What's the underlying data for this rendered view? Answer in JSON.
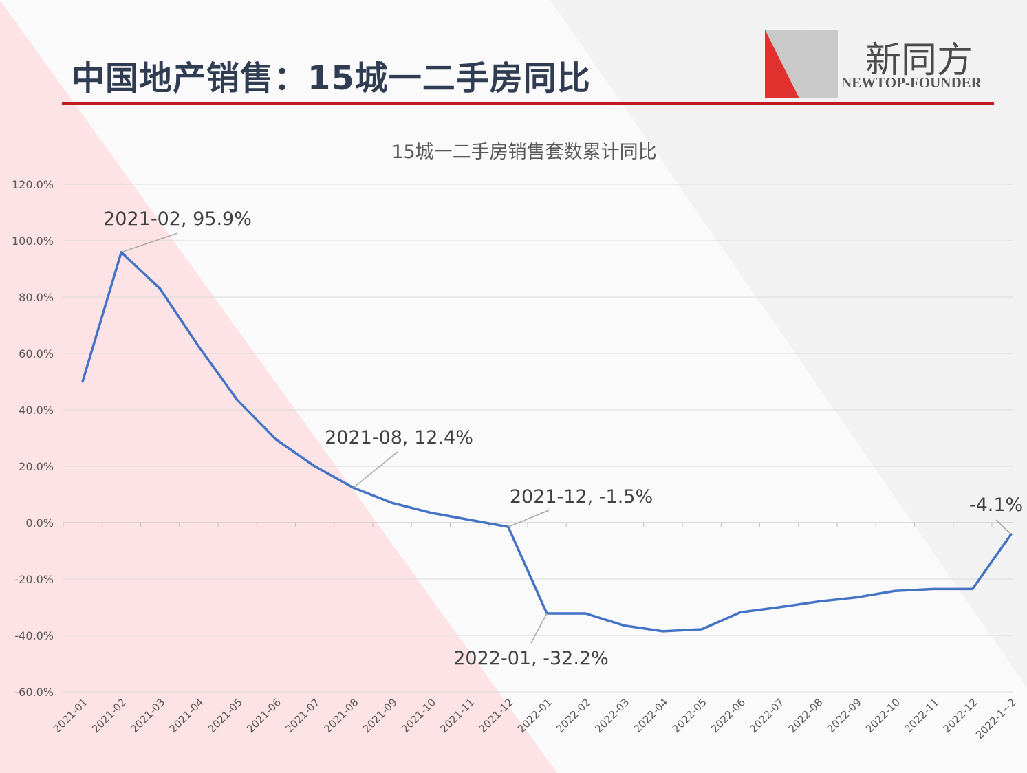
{
  "slide": {
    "title": "中国地产销售：15城一二手房同比",
    "logo_cn": "新同方",
    "logo_en": "NEWTOP-FOUNDER",
    "accent_color": "#c0191f",
    "title_color": "#2f3c52"
  },
  "chart_data": {
    "type": "line",
    "title": "15城一二手房销售套数累计同比",
    "xlabel": "",
    "ylabel": "",
    "ylim": [
      -60,
      120
    ],
    "y_ticks": [
      "120.0%",
      "100.0%",
      "80.0%",
      "60.0%",
      "40.0%",
      "20.0%",
      "0.0%",
      "-20.0%",
      "-40.0%",
      "-60.0%"
    ],
    "y_tick_values": [
      120,
      100,
      80,
      60,
      40,
      20,
      0,
      -20,
      -40,
      -60
    ],
    "grid": true,
    "legend": "none",
    "line_color": "#4472c4",
    "categories": [
      "2021-01",
      "2021-02",
      "2021-03",
      "2021-04",
      "2021-05",
      "2021-06",
      "2021-07",
      "2021-08",
      "2021-09",
      "2021-10",
      "2021-11",
      "2021-12",
      "2022-01",
      "2022-02",
      "2022-03",
      "2022-04",
      "2022-05",
      "2022-06",
      "2022-07",
      "2022-08",
      "2022-09",
      "2022-10",
      "2022-11",
      "2022-12",
      "2022-1~2"
    ],
    "series": [
      {
        "values": [
          50.0,
          95.9,
          83.0,
          62.5,
          43.5,
          29.5,
          20.0,
          12.4,
          7.0,
          3.5,
          1.0,
          -1.5,
          -32.2,
          -32.2,
          -36.5,
          -38.5,
          -37.8,
          -31.8,
          -30.0,
          -28.0,
          -26.5,
          -24.2,
          -23.5,
          -23.5,
          -4.1
        ]
      }
    ],
    "annotations": [
      {
        "index": 1,
        "text": "2021-02, 95.9%"
      },
      {
        "index": 7,
        "text": "2021-08, 12.4%"
      },
      {
        "index": 11,
        "text": "2021-12, -1.5%"
      },
      {
        "index": 12,
        "text": "2022-01, -32.2%"
      },
      {
        "index": 24,
        "text": "-4.1%"
      }
    ]
  }
}
